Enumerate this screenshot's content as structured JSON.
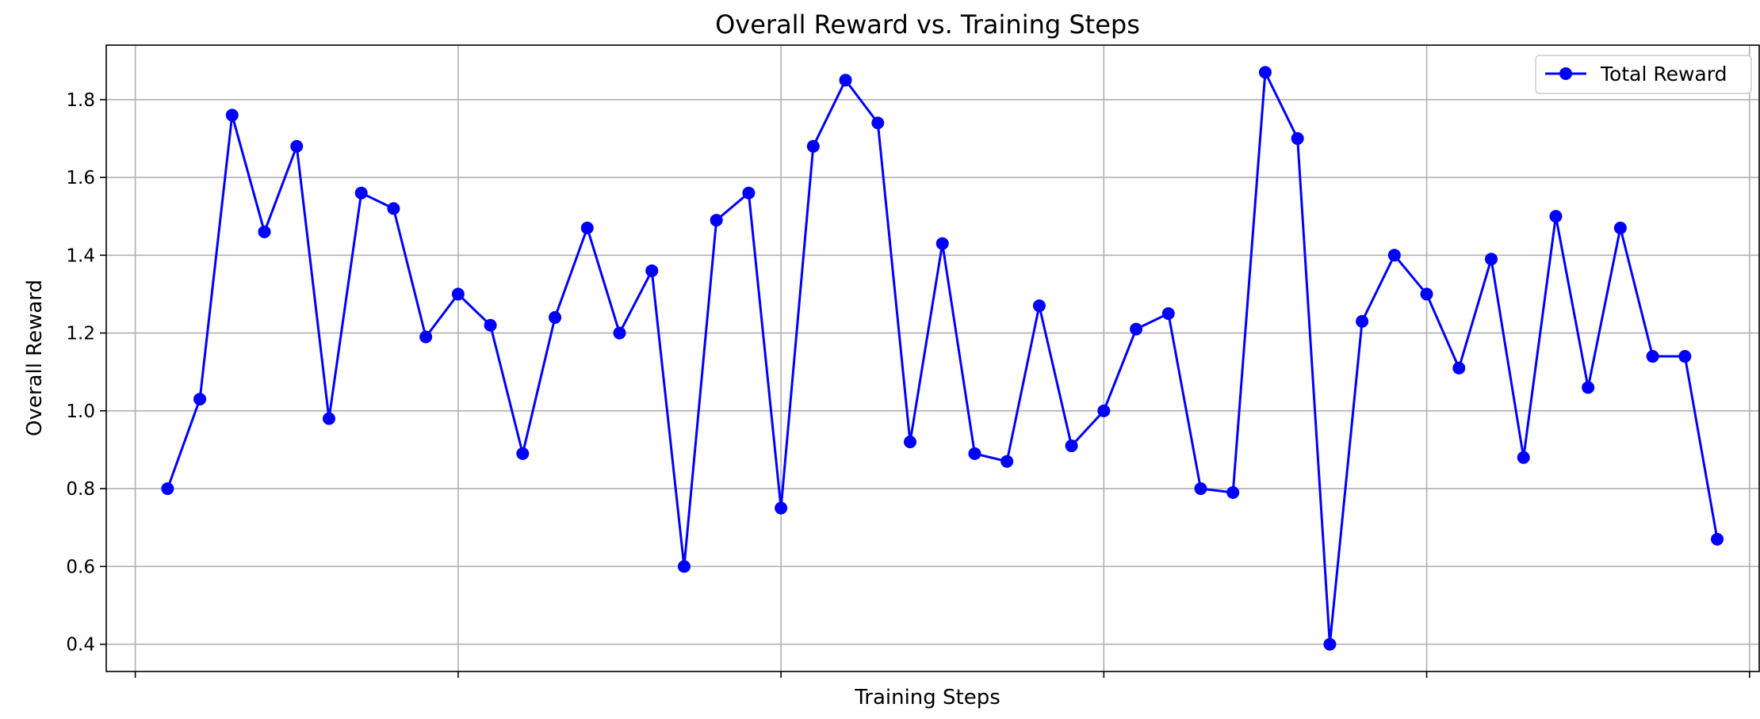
{
  "chart_data": {
    "type": "line",
    "title": "Overall Reward vs. Training Steps",
    "xlabel": "Training Steps",
    "ylabel": "Overall Reward",
    "ylim": [
      0.33,
      1.94
    ],
    "yticks": [
      0.4,
      0.6,
      0.8,
      1.0,
      1.2,
      1.4,
      1.6,
      1.8
    ],
    "ytick_labels": [
      "0.4",
      "0.6",
      "0.8",
      "1.0",
      "1.2",
      "1.4",
      "1.6",
      "1.8"
    ],
    "xlim": [
      -0.9,
      50.3
    ],
    "xticks": [
      0,
      10,
      20,
      30,
      40,
      50
    ],
    "x": [
      1,
      2,
      3,
      4,
      5,
      6,
      7,
      8,
      9,
      10,
      11,
      12,
      13,
      14,
      15,
      16,
      17,
      18,
      19,
      20,
      21,
      22,
      23,
      24,
      25,
      26,
      27,
      28,
      29,
      30,
      31,
      32,
      33,
      34,
      35,
      36,
      37,
      38,
      39,
      40,
      41,
      42,
      43,
      44,
      45,
      46,
      47,
      48,
      49
    ],
    "series": [
      {
        "name": "Total Reward",
        "color": "#0000ff",
        "marker": "circle",
        "values": [
          0.8,
          1.03,
          1.76,
          1.46,
          1.68,
          0.98,
          1.56,
          1.52,
          1.19,
          1.3,
          1.22,
          0.89,
          1.24,
          1.47,
          1.2,
          1.36,
          0.6,
          1.49,
          1.56,
          0.75,
          1.68,
          1.85,
          1.74,
          0.92,
          1.43,
          0.89,
          0.87,
          1.27,
          0.91,
          1.0,
          1.21,
          1.25,
          0.8,
          0.79,
          1.87,
          1.7,
          0.4,
          1.23,
          1.4,
          1.3,
          1.11,
          1.39,
          0.88,
          1.5,
          1.06,
          1.47,
          1.14,
          1.14,
          0.67
        ]
      }
    ],
    "grid": true,
    "legend": "top-right"
  }
}
